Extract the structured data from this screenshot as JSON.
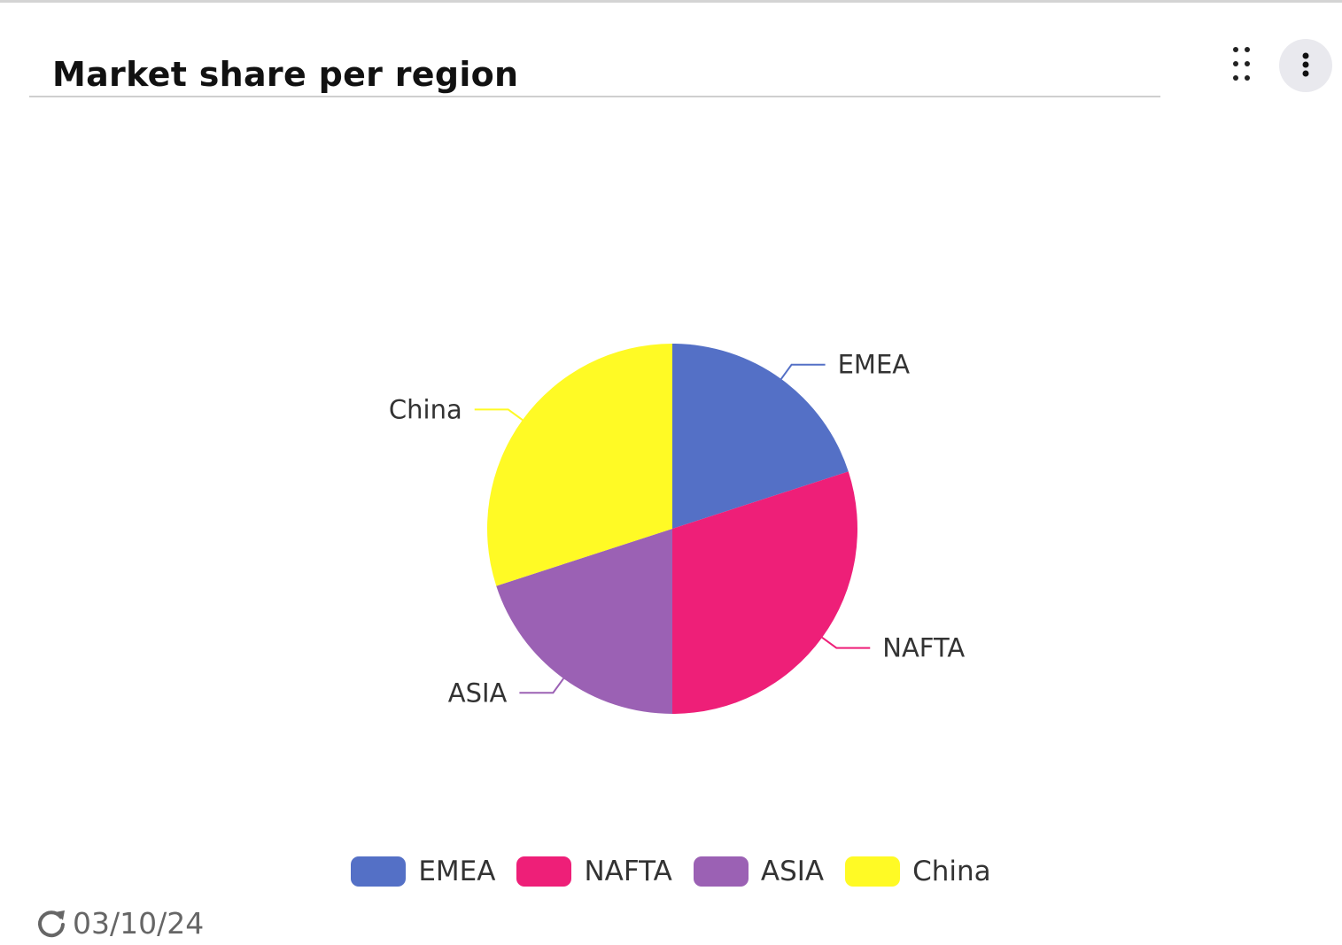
{
  "widget": {
    "title": "Market share per region",
    "last_refresh": "03/10/24",
    "icons": {
      "drag": "drag-handle-icon",
      "menu": "more-vertical-icon",
      "refresh": "refresh-icon"
    }
  },
  "chart_data": {
    "type": "pie",
    "title": "Market share per region",
    "categories": [
      "EMEA",
      "NAFTA",
      "ASIA",
      "China"
    ],
    "values": [
      20,
      30,
      20,
      30
    ],
    "colors": [
      "#5470c6",
      "#ee1f78",
      "#9b61b4",
      "#fffa25"
    ],
    "legend": "bottom-center"
  }
}
